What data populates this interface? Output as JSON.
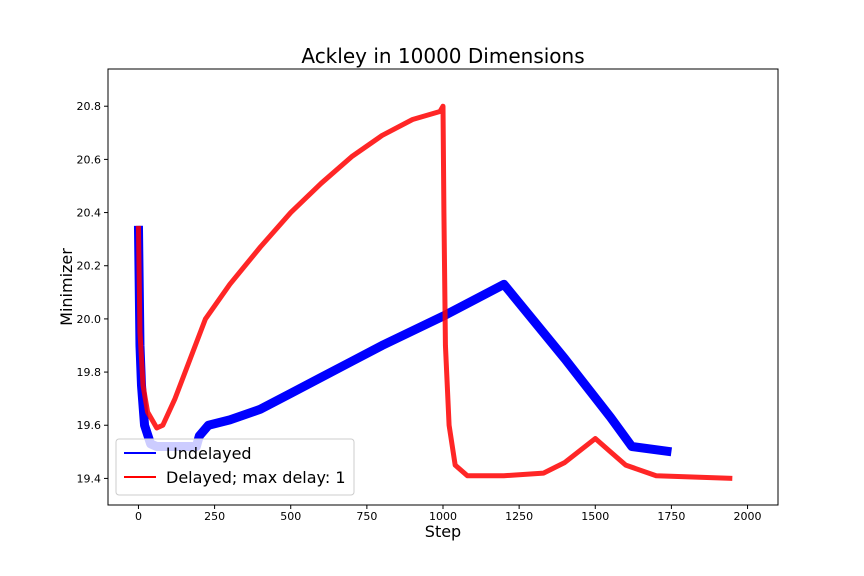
{
  "chart_data": {
    "type": "line",
    "title": "Ackley in 10000 Dimensions",
    "x_label": "Step",
    "y_label": "Minimizer",
    "xlim": [
      -100,
      2100
    ],
    "xticks": [
      0,
      250,
      500,
      750,
      1000,
      1250,
      1500,
      1750,
      2000
    ],
    "ylim": [
      19.3,
      20.94
    ],
    "yticks": [
      19.4,
      19.6,
      19.8,
      {
        "value": 20,
        "label": "20.0"
      },
      20.2,
      20.4,
      20.6,
      20.8
    ],
    "legend": "lower left",
    "series": [
      {
        "name": "Undelayed",
        "color": "#0000ff",
        "x": [
          0,
          5,
          10,
          20,
          40,
          60,
          100,
          190,
          200,
          230,
          300,
          400,
          500,
          600,
          700,
          800,
          1000,
          1200,
          1400,
          1550,
          1620,
          1750
        ],
        "values": [
          20.35,
          19.9,
          19.75,
          19.6,
          19.53,
          19.52,
          19.52,
          19.52,
          19.56,
          19.6,
          19.62,
          19.66,
          19.72,
          19.78,
          19.84,
          19.9,
          20.01,
          20.13,
          19.85,
          19.63,
          19.52,
          19.5
        ]
      },
      {
        "name": "Delayed; max delay: 1",
        "color": "#ff0000",
        "x": [
          0,
          5,
          15,
          30,
          60,
          80,
          120,
          170,
          220,
          300,
          400,
          500,
          600,
          700,
          800,
          900,
          990,
          1000,
          1003,
          1008,
          1020,
          1040,
          1080,
          1200,
          1330,
          1400,
          1500,
          1550,
          1600,
          1700,
          1950
        ],
        "values": [
          20.35,
          19.95,
          19.75,
          19.65,
          19.59,
          19.6,
          19.7,
          19.85,
          20.0,
          20.13,
          20.27,
          20.4,
          20.51,
          20.61,
          20.69,
          20.75,
          20.78,
          20.8,
          20.4,
          19.9,
          19.6,
          19.45,
          19.41,
          19.41,
          19.42,
          19.46,
          19.55,
          19.5,
          19.45,
          19.41,
          19.4
        ]
      }
    ]
  }
}
